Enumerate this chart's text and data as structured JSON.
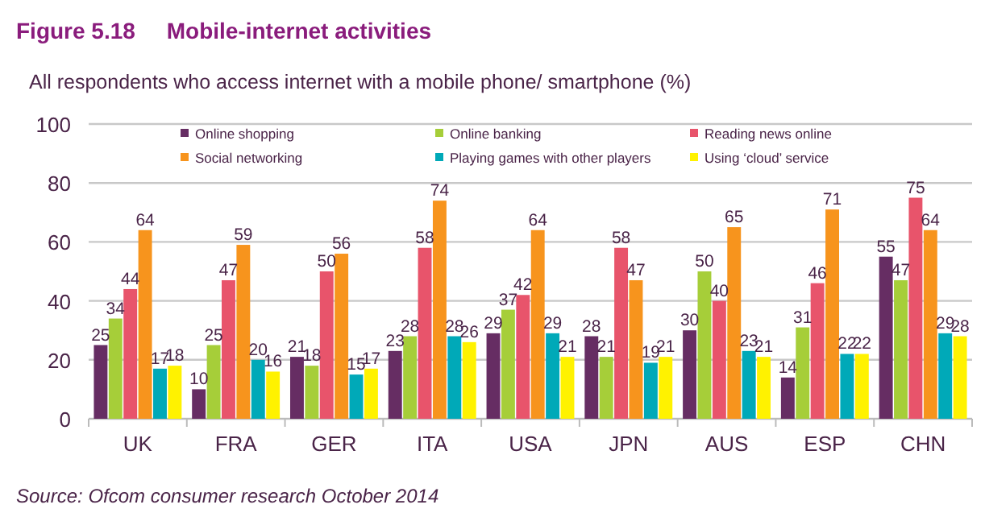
{
  "chart_data": {
    "type": "bar",
    "title": "Figure 5.18     Mobile-internet activities",
    "subtitle": "All respondents who access internet with a mobile phone/ smartphone (%)",
    "categories": [
      "UK",
      "FRA",
      "GER",
      "ITA",
      "USA",
      "JPN",
      "AUS",
      "ESP",
      "CHN"
    ],
    "series": [
      {
        "name": "Online shopping",
        "color": "#662d63",
        "values": [
          25,
          10,
          21,
          23,
          29,
          28,
          30,
          14,
          55
        ]
      },
      {
        "name": "Online banking",
        "color": "#a6ce39",
        "values": [
          34,
          25,
          18,
          28,
          37,
          21,
          50,
          31,
          47
        ]
      },
      {
        "name": "Reading news online",
        "color": "#e8546b",
        "values": [
          44,
          47,
          50,
          58,
          42,
          58,
          40,
          46,
          75
        ]
      },
      {
        "name": "Social networking",
        "color": "#f7941d",
        "values": [
          64,
          59,
          56,
          74,
          64,
          47,
          65,
          71,
          64
        ]
      },
      {
        "name": "Playing games with other players",
        "color": "#00a9b8",
        "values": [
          17,
          20,
          15,
          28,
          29,
          19,
          23,
          22,
          29
        ]
      },
      {
        "name": "Using ‘cloud’ service",
        "color": "#fff200",
        "values": [
          18,
          16,
          17,
          26,
          21,
          21,
          21,
          22,
          28
        ]
      }
    ],
    "ylim": [
      0,
      100
    ],
    "yticks": [
      0,
      20,
      40,
      60,
      80,
      100
    ],
    "grid": "y",
    "legend": "top",
    "data_labels": true,
    "annotations": [
      "Source: Ofcom consumer research October 2014"
    ]
  }
}
